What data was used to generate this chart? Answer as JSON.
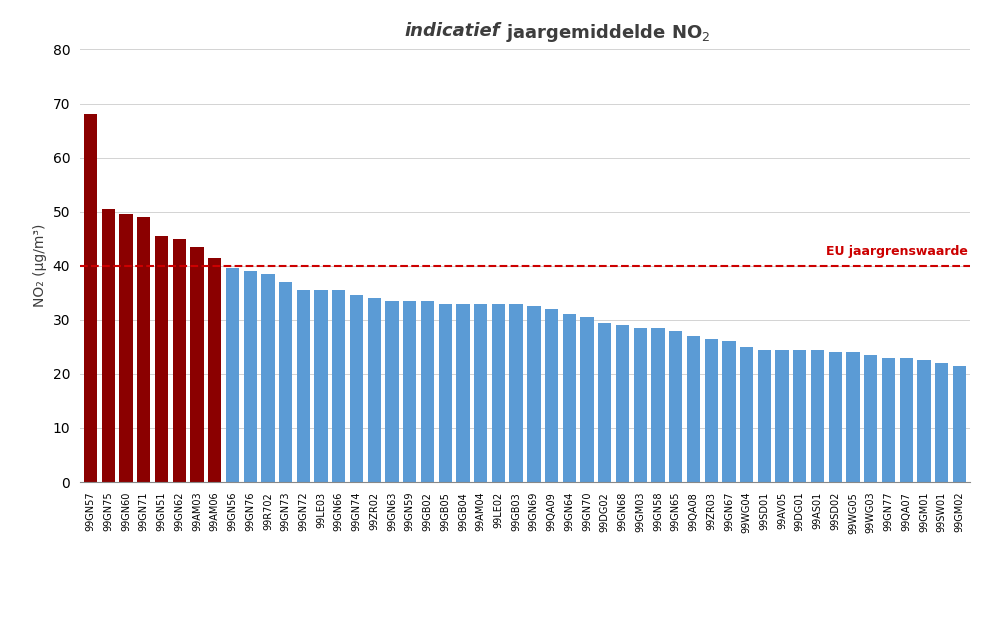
{
  "categories": [
    "99GN57",
    "99GN75",
    "99GN60",
    "99GN71",
    "99GN51",
    "99GN62",
    "99AM03",
    "99AM06",
    "99GN56",
    "99GN76",
    "99R702",
    "99GN73",
    "99GN72",
    "99LE03",
    "99GN66",
    "99GN74",
    "99ZR02",
    "99GN63",
    "99GN59",
    "99GB02",
    "99GB05",
    "99GB04",
    "99AM04",
    "99LE02",
    "99GB03",
    "99GN69",
    "99QA09",
    "99GN64",
    "99GN70",
    "99DG02",
    "99GN68",
    "99GM03",
    "99GN58",
    "99GN65",
    "99QA08",
    "99ZR03",
    "99GN67",
    "99WG04",
    "99SD01",
    "99AV05",
    "99DG01",
    "99AS01",
    "99SD02",
    "99WG05",
    "99WG03",
    "99GN77",
    "99QA07",
    "99GM01",
    "99SW01",
    "99GM02"
  ],
  "values": [
    68,
    50.5,
    49.5,
    49,
    45.5,
    45,
    43.5,
    41.5,
    39.5,
    39,
    38.5,
    37,
    35.5,
    35.5,
    35.5,
    34.5,
    34,
    33.5,
    33.5,
    33.5,
    33,
    33,
    33,
    33,
    33,
    32.5,
    32,
    31,
    30.5,
    29.5,
    29,
    28.5,
    28.5,
    28,
    27,
    26.5,
    26,
    25,
    24.5,
    24.5,
    24.5,
    24.5,
    24,
    24,
    23.5,
    23,
    23,
    22.5,
    22,
    21.5
  ],
  "threshold": 40,
  "bar_color_above": "#8B0000",
  "bar_color_below": "#5B9BD5",
  "threshold_color": "#CC0000",
  "threshold_label": "EU jaargrenswaarde",
  "ylabel": "NO₂ (µg/m³)",
  "ylim": [
    0,
    80
  ],
  "yticks": [
    0,
    10,
    20,
    30,
    40,
    50,
    60,
    70,
    80
  ],
  "grid_color": "#D3D3D3",
  "tick_fontsize": 10,
  "xtick_fontsize": 7,
  "bar_width": 0.75
}
